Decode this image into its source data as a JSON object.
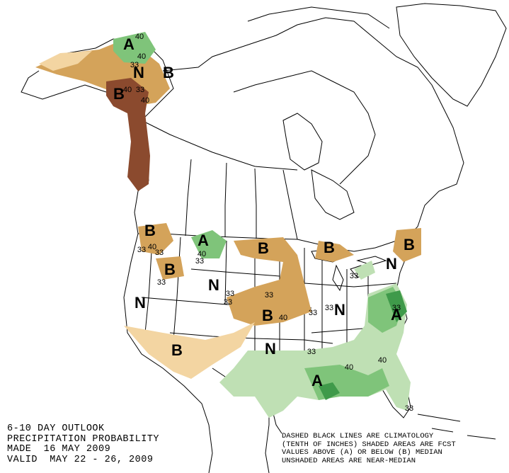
{
  "title": {
    "line1": "6-10 DAY OUTLOOK",
    "line2": "PRECIPITATION PROBABILITY",
    "line3": "MADE  16 MAY 2009",
    "line4": "VALID  MAY 22 - 26, 2009"
  },
  "legend": {
    "line1": "DASHED BLACK LINES ARE CLIMATOLOGY",
    "line2": "(TENTH OF INCHES) SHADED AREAS ARE FCST",
    "line3": "VALUES ABOVE (A) OR BELOW (B) MEDIAN",
    "line4": "UNSHADED AREAS ARE NEAR-MEDIAN"
  },
  "colors": {
    "below_33": "#f3d5a2",
    "below_40": "#d4a35a",
    "below_50": "#8b4a2e",
    "above_33": "#bfe0b4",
    "above_40": "#7fc47a",
    "above_50": "#3f9a4a"
  },
  "region_labels": [
    "A",
    "N",
    "B",
    "B",
    "B",
    "A",
    "B",
    "B",
    "B",
    "B",
    "N",
    "N",
    "N",
    "B",
    "N",
    "N",
    "B",
    "A",
    "A"
  ],
  "contour_labels": [
    "40",
    "40",
    "33",
    "33",
    "40",
    "40",
    "33",
    "40",
    "33",
    "33",
    "40",
    "33",
    "33",
    "33",
    "33",
    "40",
    "33",
    "33",
    "40",
    "40",
    "33",
    "33",
    "33",
    "33"
  ]
}
